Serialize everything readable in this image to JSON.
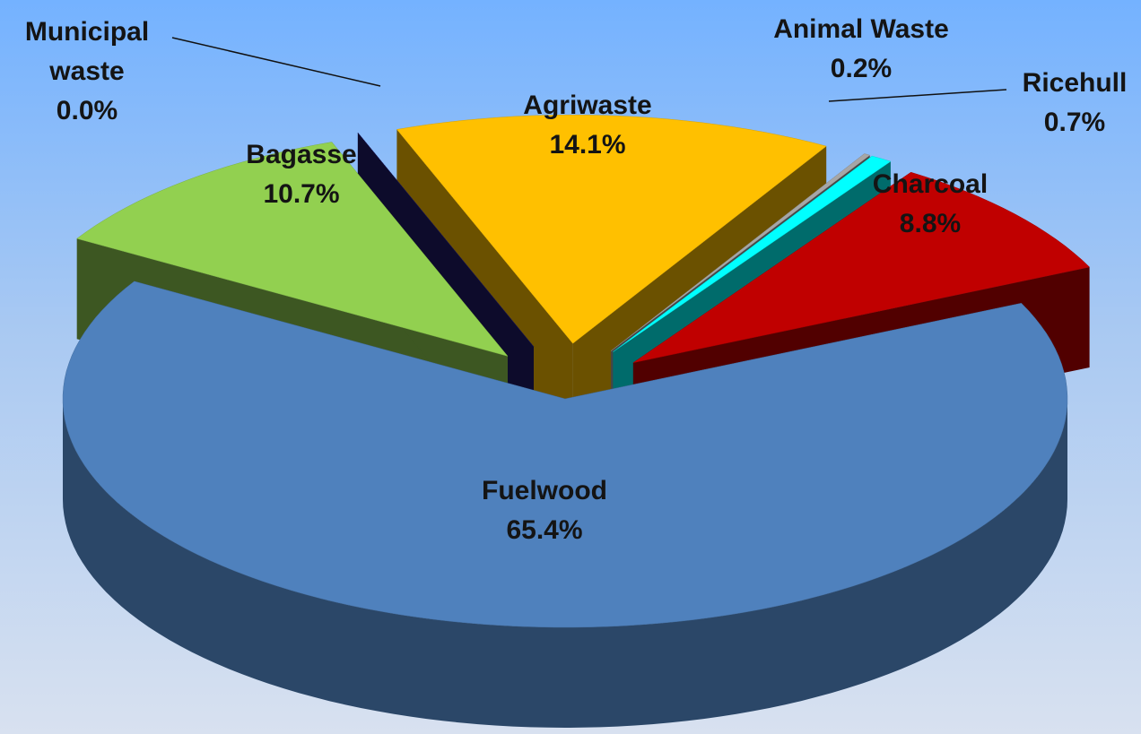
{
  "chart_data": {
    "type": "pie3d",
    "categories": [
      "Agriwaste",
      "Animal Waste",
      "Ricehull",
      "Charcoal",
      "Fuelwood",
      "Bagasse",
      "Municipal waste"
    ],
    "values": [
      14.1,
      0.2,
      0.7,
      8.8,
      65.4,
      10.7,
      0.0
    ],
    "value_labels": [
      "14.1%",
      "0.2%",
      "0.7%",
      "8.8%",
      "65.4%",
      "10.7%",
      "0.0%"
    ],
    "colors": [
      "#ffc000",
      "#a6a6a6",
      "#00ffff",
      "#c00000",
      "#4f81bd",
      "#92d050",
      "#1f1a66"
    ]
  }
}
